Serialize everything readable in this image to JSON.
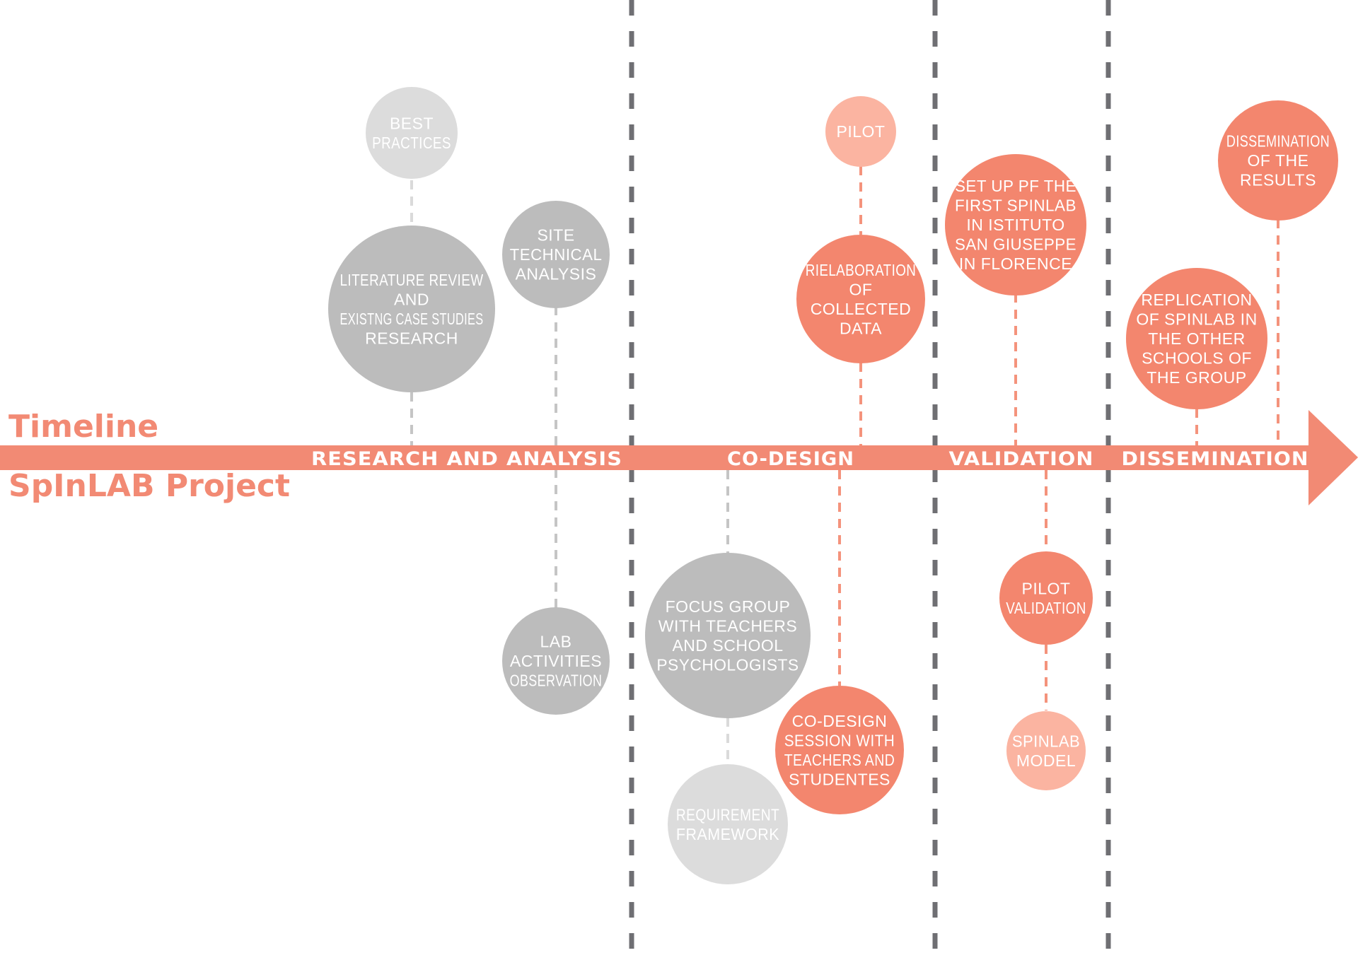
{
  "title": {
    "line1": "Timeline",
    "line2": "SpInLAB Project"
  },
  "colors": {
    "accent": "#f28a74",
    "orange": "#f3866e",
    "light_orange": "#fbb4a1",
    "gray": "#bcbcbc",
    "light_gray": "#dcdcdc",
    "divider": "#6f6f73"
  },
  "phases": [
    {
      "label": "RESEARCH AND ANALYSIS"
    },
    {
      "label": "CO-DESIGN"
    },
    {
      "label": "VALIDATION"
    },
    {
      "label": "DISSEMINATION"
    }
  ],
  "nodes": {
    "best_practices": {
      "lines": [
        "BEST",
        "PRACTICES"
      ],
      "color": "light_gray"
    },
    "literature_review": {
      "lines": [
        "LITERATURE REVIEW",
        "AND",
        "EXISTNG CASE STUDIES",
        "RESEARCH"
      ],
      "color": "gray"
    },
    "site_technical_analysis": {
      "lines": [
        "SITE",
        "TECHNICAL",
        "ANALYSIS"
      ],
      "color": "gray"
    },
    "lab_activities_observation": {
      "lines": [
        "LAB",
        "ACTIVITIES",
        "OBSERVATION"
      ],
      "color": "gray"
    },
    "focus_group": {
      "lines": [
        "FOCUS GROUP",
        "WITH TEACHERS",
        "AND SCHOOL",
        "PSYCHOLOGISTS"
      ],
      "color": "gray"
    },
    "requirement_framework": {
      "lines": [
        "REQUIREMENT",
        "FRAMEWORK"
      ],
      "color": "light_gray"
    },
    "pilot": {
      "lines": [
        "PILOT"
      ],
      "color": "light_orange"
    },
    "rielaboration": {
      "lines": [
        "RIELABORATION",
        "OF",
        "COLLECTED",
        "DATA"
      ],
      "color": "orange"
    },
    "co_design_session": {
      "lines": [
        "CO-DESIGN",
        "SESSION WITH",
        "TEACHERS AND",
        "STUDENTES"
      ],
      "color": "orange"
    },
    "set_up_spinlab": {
      "lines": [
        "SET UP PF THE",
        "FIRST SPINLAB",
        "IN ISTITUTO",
        "SAN GIUSEPPE",
        "IN FLORENCE"
      ],
      "color": "orange"
    },
    "pilot_validation": {
      "lines": [
        "PILOT",
        "VALIDATION"
      ],
      "color": "orange"
    },
    "spinlab_model": {
      "lines": [
        "SPINLAB",
        "MODEL"
      ],
      "color": "light_orange"
    },
    "dissemination_results": {
      "lines": [
        "DISSEMINATION",
        "OF THE",
        "RESULTS"
      ],
      "color": "orange"
    },
    "replication_spinlab": {
      "lines": [
        "REPLICATION",
        "OF SPINLAB IN",
        "THE OTHER",
        "SCHOOLS OF",
        "THE GROUP"
      ],
      "color": "orange"
    }
  }
}
